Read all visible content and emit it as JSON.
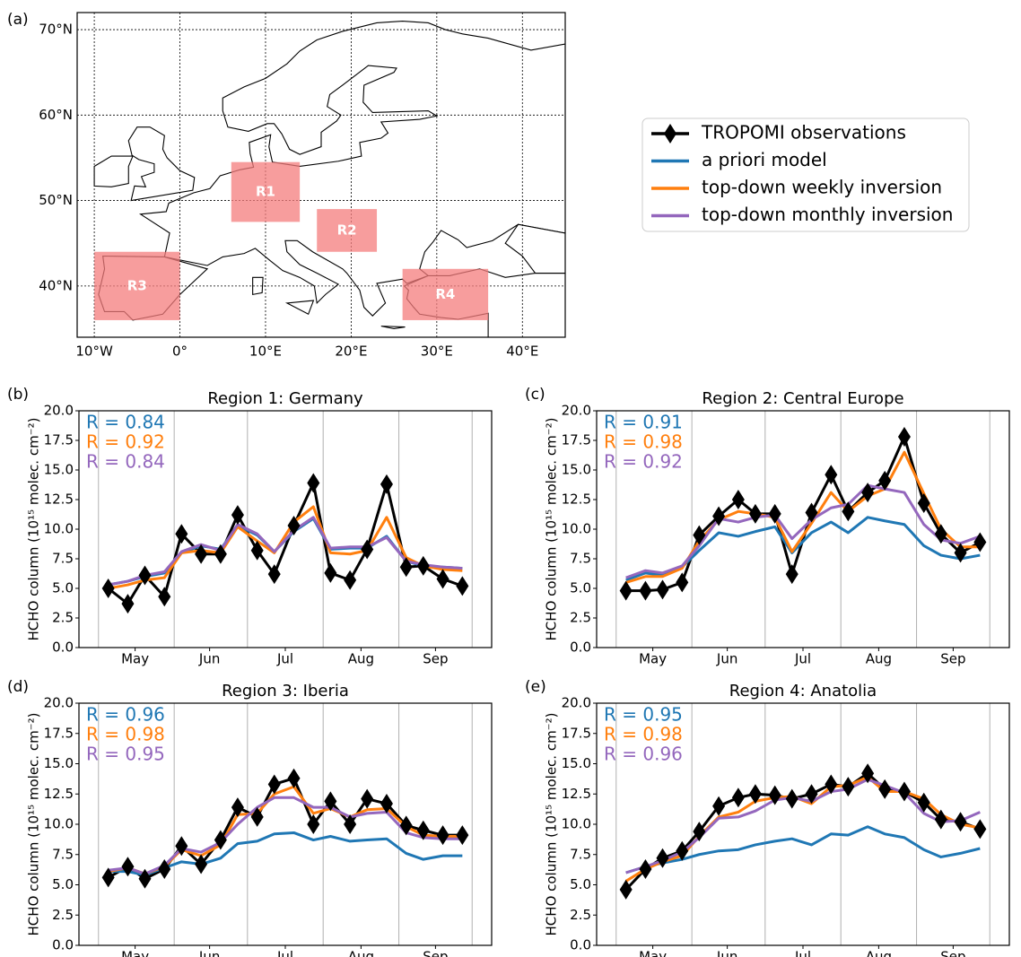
{
  "chart_data": [
    {
      "type": "map",
      "panel_label": "(a)",
      "xlim": [
        -12,
        45
      ],
      "ylim": [
        34,
        72
      ],
      "xticks": [
        {
          "value": -10,
          "label": "10°W"
        },
        {
          "value": 0,
          "label": "0°"
        },
        {
          "value": 10,
          "label": "10°E"
        },
        {
          "value": 20,
          "label": "20°E"
        },
        {
          "value": 30,
          "label": "30°E"
        },
        {
          "value": 40,
          "label": "40°E"
        }
      ],
      "yticks": [
        {
          "value": 40,
          "label": "40°N"
        },
        {
          "value": 50,
          "label": "50°N"
        },
        {
          "value": 60,
          "label": "60°N"
        },
        {
          "value": 70,
          "label": "70°N"
        }
      ],
      "grid": true,
      "legend": true,
      "region_color": "#f47c7c",
      "regions": [
        {
          "label": "R1",
          "lon": [
            6,
            14
          ],
          "lat": [
            47.5,
            54.5
          ]
        },
        {
          "label": "R2",
          "lon": [
            16,
            23
          ],
          "lat": [
            44,
            49
          ]
        },
        {
          "label": "R3",
          "lon": [
            -10,
            0
          ],
          "lat": [
            36,
            44
          ]
        },
        {
          "label": "R4",
          "lon": [
            26,
            36
          ],
          "lat": [
            36,
            42
          ]
        }
      ]
    },
    {
      "type": "line",
      "panel_label": "(b)",
      "title": "Region 1: Germany",
      "y_label": "HCHO column (10¹⁵ molec. cm⁻²)",
      "x": [
        125,
        133,
        140,
        148,
        155,
        163,
        171,
        178,
        186,
        193,
        201,
        209,
        216,
        224,
        231,
        239,
        247,
        254,
        262,
        270
      ],
      "xlim": [
        113,
        282
      ],
      "xgrid": [
        121,
        152,
        182,
        213,
        244,
        274
      ],
      "xticks": [
        {
          "value": 136,
          "label": "May"
        },
        {
          "value": 166.5,
          "label": "Jun"
        },
        {
          "value": 197.5,
          "label": "Jul"
        },
        {
          "value": 228.5,
          "label": "Aug"
        },
        {
          "value": 259,
          "label": "Sep"
        }
      ],
      "ylim": [
        0,
        20
      ],
      "yticks": [
        {
          "value": 0,
          "label": "0.0"
        },
        2.5,
        {
          "value": 5,
          "label": "5.0"
        },
        7.5,
        {
          "value": 10,
          "label": "10.0"
        },
        12.5,
        {
          "value": 15,
          "label": "15.0"
        },
        17.5,
        {
          "value": 20,
          "label": "20.0"
        }
      ],
      "series": [
        {
          "name": "TROPOMI observations",
          "color": "#000000",
          "marker": "diamond",
          "values": [
            5.0,
            3.7,
            6.1,
            4.3,
            9.6,
            7.9,
            7.9,
            11.2,
            8.2,
            6.2,
            10.3,
            13.9,
            6.3,
            5.7,
            8.3,
            13.8,
            6.8,
            6.9,
            5.8,
            5.2
          ]
        },
        {
          "name": "a priori model",
          "color": "#1f77b4",
          "r_label": "R = 0.84",
          "values": [
            5.3,
            5.6,
            6.0,
            6.3,
            8.0,
            8.6,
            8.3,
            10.3,
            9.5,
            8.1,
            9.8,
            10.9,
            8.3,
            8.4,
            8.4,
            9.4,
            7.3,
            6.9,
            6.8,
            6.7
          ]
        },
        {
          "name": "top-down weekly inversion",
          "color": "#ff7f0e",
          "r_label": "R = 0.92",
          "values": [
            5.0,
            5.3,
            5.7,
            5.9,
            8.0,
            8.2,
            8.0,
            10.2,
            9.0,
            8.0,
            10.6,
            11.9,
            8.0,
            7.9,
            8.2,
            11.0,
            7.6,
            6.9,
            6.6,
            6.5
          ]
        },
        {
          "name": "top-down monthly inversion",
          "color": "#9467bd",
          "r_label": "R = 0.84",
          "values": [
            5.3,
            5.6,
            6.1,
            6.4,
            8.1,
            8.7,
            8.2,
            10.4,
            9.6,
            8.1,
            9.9,
            11.0,
            8.4,
            8.5,
            8.5,
            9.3,
            7.3,
            7.0,
            6.8,
            6.7
          ]
        }
      ]
    },
    {
      "type": "line",
      "panel_label": "(c)",
      "title": "Region 2: Central Europe",
      "y_label": "HCHO column (10¹⁵ molec. cm⁻²)",
      "x": [
        125,
        133,
        140,
        148,
        155,
        163,
        171,
        178,
        186,
        193,
        201,
        209,
        216,
        224,
        231,
        239,
        247,
        254,
        262,
        270
      ],
      "xlim": [
        113,
        282
      ],
      "xgrid": [
        121,
        152,
        182,
        213,
        244,
        274
      ],
      "xticks": [
        {
          "value": 136,
          "label": "May"
        },
        {
          "value": 166.5,
          "label": "Jun"
        },
        {
          "value": 197.5,
          "label": "Jul"
        },
        {
          "value": 228.5,
          "label": "Aug"
        },
        {
          "value": 259,
          "label": "Sep"
        }
      ],
      "ylim": [
        0,
        20
      ],
      "yticks": [
        {
          "value": 0,
          "label": "0.0"
        },
        2.5,
        {
          "value": 5,
          "label": "5.0"
        },
        7.5,
        {
          "value": 10,
          "label": "10.0"
        },
        12.5,
        {
          "value": 15,
          "label": "15.0"
        },
        17.5,
        {
          "value": 20,
          "label": "20.0"
        }
      ],
      "series": [
        {
          "name": "TROPOMI observations",
          "color": "#000000",
          "marker": "diamond",
          "values": [
            4.8,
            4.8,
            4.9,
            5.5,
            9.5,
            11.1,
            12.5,
            11.3,
            11.3,
            6.2,
            11.4,
            14.6,
            11.5,
            13.1,
            14.1,
            17.8,
            12.2,
            9.6,
            8.0,
            8.9
          ]
        },
        {
          "name": "a priori model",
          "color": "#1f77b4",
          "r_label": "R = 0.91",
          "values": [
            5.7,
            6.3,
            6.1,
            6.8,
            8.2,
            9.7,
            9.4,
            9.8,
            10.2,
            8.0,
            9.7,
            10.6,
            9.7,
            11.0,
            10.7,
            10.4,
            8.6,
            7.8,
            7.5,
            7.8
          ]
        },
        {
          "name": "top-down weekly inversion",
          "color": "#ff7f0e",
          "r_label": "R = 0.98",
          "values": [
            5.5,
            6.0,
            6.0,
            6.7,
            9.0,
            10.8,
            11.5,
            11.3,
            11.0,
            8.1,
            10.5,
            13.1,
            11.5,
            12.8,
            13.4,
            16.5,
            13.0,
            10.0,
            8.5,
            8.5
          ]
        },
        {
          "name": "top-down monthly inversion",
          "color": "#9467bd",
          "r_label": "R = 0.92",
          "values": [
            5.9,
            6.5,
            6.3,
            6.9,
            8.6,
            10.9,
            10.6,
            11.0,
            11.2,
            9.2,
            10.8,
            11.8,
            12.1,
            13.7,
            13.4,
            13.1,
            10.4,
            9.1,
            8.8,
            9.4
          ]
        }
      ]
    },
    {
      "type": "line",
      "panel_label": "(d)",
      "title": "Region 3: Iberia",
      "y_label": "HCHO column (10¹⁵ molec. cm⁻²)",
      "x": [
        125,
        133,
        140,
        148,
        155,
        163,
        171,
        178,
        186,
        193,
        201,
        209,
        216,
        224,
        231,
        239,
        247,
        254,
        262,
        270
      ],
      "xlim": [
        113,
        282
      ],
      "xgrid": [
        121,
        152,
        182,
        213,
        244,
        274
      ],
      "xticks": [
        {
          "value": 136,
          "label": "May"
        },
        {
          "value": 166.5,
          "label": "Jun"
        },
        {
          "value": 197.5,
          "label": "Jul"
        },
        {
          "value": 228.5,
          "label": "Aug"
        },
        {
          "value": 259,
          "label": "Sep"
        }
      ],
      "ylim": [
        0,
        20
      ],
      "yticks": [
        {
          "value": 0,
          "label": "0.0"
        },
        2.5,
        {
          "value": 5,
          "label": "5.0"
        },
        7.5,
        {
          "value": 10,
          "label": "10.0"
        },
        12.5,
        {
          "value": 15,
          "label": "15.0"
        },
        17.5,
        {
          "value": 20,
          "label": "20.0"
        }
      ],
      "series": [
        {
          "name": "TROPOMI observations",
          "color": "#000000",
          "marker": "diamond",
          "values": [
            5.6,
            6.5,
            5.5,
            6.3,
            8.2,
            6.7,
            8.7,
            11.4,
            10.6,
            13.3,
            13.8,
            10.0,
            11.9,
            10.0,
            12.1,
            11.7,
            9.9,
            9.5,
            9.1,
            9.1
          ]
        },
        {
          "name": "a priori model",
          "color": "#1f77b4",
          "r_label": "R = 0.96",
          "values": [
            6.1,
            6.1,
            5.8,
            6.4,
            6.9,
            6.7,
            7.2,
            8.4,
            8.6,
            9.2,
            9.3,
            8.7,
            9.0,
            8.6,
            8.7,
            8.8,
            7.6,
            7.1,
            7.4,
            7.4
          ]
        },
        {
          "name": "top-down weekly inversion",
          "color": "#ff7f0e",
          "r_label": "R = 0.98",
          "values": [
            6.1,
            6.4,
            5.9,
            6.5,
            7.9,
            7.4,
            8.3,
            10.8,
            10.9,
            12.5,
            13.1,
            10.9,
            11.3,
            10.6,
            11.2,
            11.3,
            9.8,
            9.1,
            9.0,
            9.0
          ]
        },
        {
          "name": "top-down monthly inversion",
          "color": "#9467bd",
          "r_label": "R = 0.95",
          "values": [
            6.2,
            6.4,
            5.9,
            6.6,
            8.0,
            7.7,
            8.5,
            10.0,
            11.4,
            12.2,
            12.2,
            11.4,
            11.4,
            10.6,
            10.9,
            11.0,
            9.3,
            8.9,
            8.8,
            8.8
          ]
        }
      ]
    },
    {
      "type": "line",
      "panel_label": "(e)",
      "title": "Region 4: Anatolia",
      "y_label": "HCHO column (10¹⁵ molec. cm⁻²)",
      "x": [
        125,
        133,
        140,
        148,
        155,
        163,
        171,
        178,
        186,
        193,
        201,
        209,
        216,
        224,
        231,
        239,
        247,
        254,
        262,
        270
      ],
      "xlim": [
        113,
        282
      ],
      "xgrid": [
        121,
        152,
        182,
        213,
        244,
        274
      ],
      "xticks": [
        {
          "value": 136,
          "label": "May"
        },
        {
          "value": 166.5,
          "label": "Jun"
        },
        {
          "value": 197.5,
          "label": "Jul"
        },
        {
          "value": 228.5,
          "label": "Aug"
        },
        {
          "value": 259,
          "label": "Sep"
        }
      ],
      "ylim": [
        0,
        20
      ],
      "yticks": [
        {
          "value": 0,
          "label": "0.0"
        },
        2.5,
        {
          "value": 5,
          "label": "5.0"
        },
        7.5,
        {
          "value": 10,
          "label": "10.0"
        },
        12.5,
        {
          "value": 15,
          "label": "15.0"
        },
        17.5,
        {
          "value": 20,
          "label": "20.0"
        }
      ],
      "series": [
        {
          "name": "TROPOMI observations",
          "color": "#000000",
          "marker": "diamond",
          "values": [
            4.6,
            6.3,
            7.2,
            7.8,
            9.4,
            11.5,
            12.2,
            12.5,
            12.4,
            12.1,
            12.5,
            13.3,
            13.1,
            14.2,
            12.9,
            12.7,
            11.8,
            10.4,
            10.2,
            9.6
          ]
        },
        {
          "name": "a priori model",
          "color": "#1f77b4",
          "r_label": "R = 0.95",
          "values": [
            6.0,
            6.5,
            6.8,
            7.1,
            7.5,
            7.8,
            7.9,
            8.3,
            8.6,
            8.8,
            8.3,
            9.2,
            9.1,
            9.8,
            9.2,
            8.9,
            7.9,
            7.3,
            7.6,
            8.0
          ]
        },
        {
          "name": "top-down weekly inversion",
          "color": "#ff7f0e",
          "r_label": "R = 0.98",
          "values": [
            5.3,
            6.3,
            6.9,
            7.4,
            9.0,
            10.6,
            11.0,
            11.9,
            12.2,
            12.3,
            11.7,
            13.1,
            13.2,
            13.9,
            12.7,
            12.7,
            12.1,
            10.8,
            10.0,
            9.7
          ]
        },
        {
          "name": "top-down monthly inversion",
          "color": "#9467bd",
          "r_label": "R = 0.96",
          "values": [
            6.0,
            6.5,
            7.0,
            7.7,
            8.9,
            10.5,
            10.6,
            11.1,
            12.0,
            12.2,
            11.9,
            12.7,
            12.9,
            13.7,
            13.2,
            12.6,
            10.9,
            10.2,
            10.3,
            11.0
          ]
        }
      ]
    }
  ]
}
